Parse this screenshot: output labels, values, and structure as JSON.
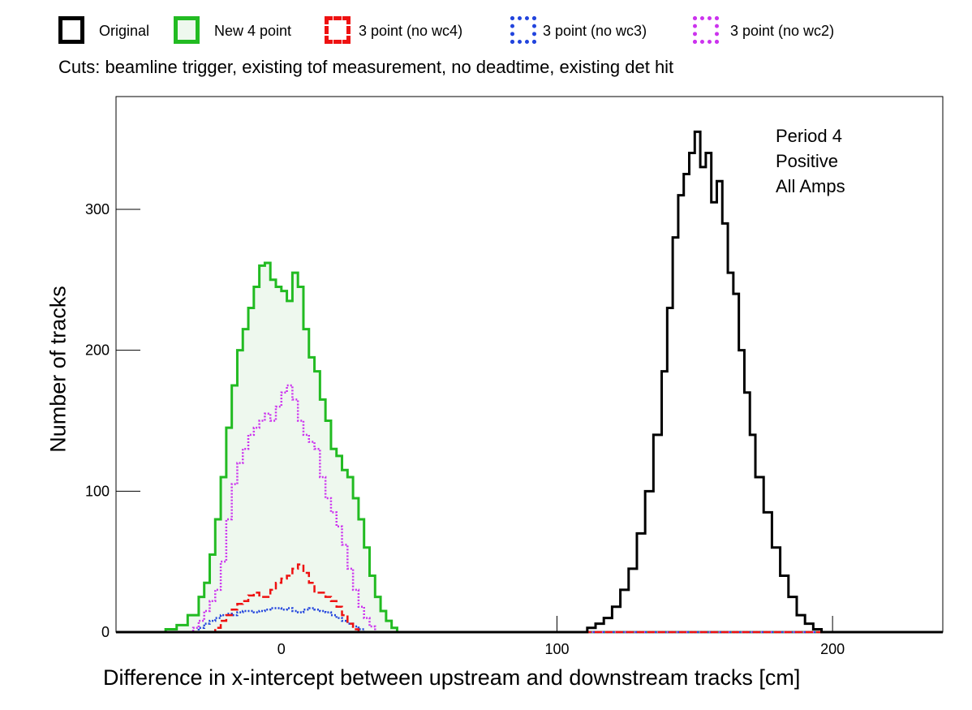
{
  "legend": [
    {
      "label": "Original",
      "color": "#000000",
      "style": "solid",
      "fill": "none"
    },
    {
      "label": "New 4 point",
      "color": "#22bb22",
      "style": "solid",
      "fill": "#eef8ee"
    },
    {
      "label": "3 point (no wc4)",
      "color": "#ee1111",
      "style": "dashed",
      "fill": "none"
    },
    {
      "label": "3 point (no wc3)",
      "color": "#2244dd",
      "style": "dotted",
      "fill": "none"
    },
    {
      "label": "3 point (no wc2)",
      "color": "#cc33ee",
      "style": "dotted",
      "fill": "none"
    }
  ],
  "cuts_text": "Cuts: beamline trigger, existing tof measurement, no deadtime, existing det hit",
  "annotations": [
    "Period 4",
    "Positive",
    "All Amps"
  ],
  "chart_data": {
    "type": "histogram",
    "xlabel": "Difference in x-intercept between upstream and downstream tracks [cm]",
    "ylabel": "Number of tracks",
    "xlim": [
      -60,
      240
    ],
    "ylim": [
      0,
      380
    ],
    "x_ticks": [
      0,
      100,
      200
    ],
    "y_ticks": [
      0,
      100,
      200,
      300
    ],
    "grid": false,
    "legend_position": "top",
    "series": [
      {
        "name": "Original",
        "color": "#000000",
        "style": "solid",
        "points": [
          [
            108,
            0
          ],
          [
            111,
            3
          ],
          [
            114,
            6
          ],
          [
            117,
            10
          ],
          [
            120,
            18
          ],
          [
            123,
            30
          ],
          [
            126,
            45
          ],
          [
            129,
            70
          ],
          [
            132,
            100
          ],
          [
            135,
            140
          ],
          [
            138,
            185
          ],
          [
            140,
            230
          ],
          [
            142,
            280
          ],
          [
            144,
            310
          ],
          [
            146,
            325
          ],
          [
            148,
            340
          ],
          [
            150,
            355
          ],
          [
            152,
            330
          ],
          [
            154,
            340
          ],
          [
            156,
            305
          ],
          [
            158,
            320
          ],
          [
            160,
            290
          ],
          [
            162,
            255
          ],
          [
            164,
            240
          ],
          [
            166,
            200
          ],
          [
            168,
            170
          ],
          [
            170,
            140
          ],
          [
            172,
            110
          ],
          [
            175,
            85
          ],
          [
            178,
            60
          ],
          [
            181,
            40
          ],
          [
            184,
            25
          ],
          [
            187,
            12
          ],
          [
            190,
            6
          ],
          [
            193,
            2
          ],
          [
            196,
            0
          ]
        ]
      },
      {
        "name": "New 4 point",
        "color": "#22bb22",
        "style": "solid",
        "fill": "#eef8ee",
        "points": [
          [
            -46,
            0
          ],
          [
            -42,
            2
          ],
          [
            -38,
            5
          ],
          [
            -34,
            12
          ],
          [
            -30,
            25
          ],
          [
            -28,
            35
          ],
          [
            -26,
            55
          ],
          [
            -24,
            80
          ],
          [
            -22,
            110
          ],
          [
            -20,
            145
          ],
          [
            -18,
            175
          ],
          [
            -16,
            200
          ],
          [
            -14,
            215
          ],
          [
            -12,
            230
          ],
          [
            -10,
            245
          ],
          [
            -8,
            260
          ],
          [
            -6,
            262
          ],
          [
            -4,
            250
          ],
          [
            -2,
            245
          ],
          [
            0,
            242
          ],
          [
            2,
            235
          ],
          [
            4,
            255
          ],
          [
            6,
            245
          ],
          [
            8,
            215
          ],
          [
            10,
            195
          ],
          [
            12,
            185
          ],
          [
            14,
            165
          ],
          [
            16,
            150
          ],
          [
            18,
            130
          ],
          [
            20,
            125
          ],
          [
            22,
            115
          ],
          [
            24,
            110
          ],
          [
            26,
            95
          ],
          [
            28,
            80
          ],
          [
            30,
            60
          ],
          [
            32,
            40
          ],
          [
            34,
            25
          ],
          [
            36,
            15
          ],
          [
            38,
            8
          ],
          [
            40,
            3
          ],
          [
            42,
            0
          ]
        ]
      },
      {
        "name": "3 point (no wc4)",
        "color": "#ee1111",
        "style": "dashed",
        "points": [
          [
            -26,
            0
          ],
          [
            -24,
            3
          ],
          [
            -22,
            8
          ],
          [
            -20,
            12
          ],
          [
            -18,
            16
          ],
          [
            -16,
            20
          ],
          [
            -14,
            22
          ],
          [
            -12,
            26
          ],
          [
            -10,
            28
          ],
          [
            -8,
            25
          ],
          [
            -6,
            25
          ],
          [
            -4,
            30
          ],
          [
            -2,
            35
          ],
          [
            0,
            38
          ],
          [
            2,
            40
          ],
          [
            4,
            45
          ],
          [
            6,
            48
          ],
          [
            8,
            42
          ],
          [
            10,
            35
          ],
          [
            12,
            28
          ],
          [
            14,
            28
          ],
          [
            16,
            25
          ],
          [
            18,
            22
          ],
          [
            20,
            18
          ],
          [
            22,
            12
          ],
          [
            24,
            6
          ],
          [
            26,
            2
          ],
          [
            28,
            0
          ]
        ]
      },
      {
        "name": "3 point (no wc3)",
        "color": "#2244dd",
        "style": "dotted",
        "points": [
          [
            -32,
            0
          ],
          [
            -30,
            3
          ],
          [
            -28,
            6
          ],
          [
            -26,
            8
          ],
          [
            -24,
            10
          ],
          [
            -22,
            12
          ],
          [
            -20,
            13
          ],
          [
            -18,
            12
          ],
          [
            -16,
            14
          ],
          [
            -14,
            15
          ],
          [
            -12,
            15
          ],
          [
            -10,
            14
          ],
          [
            -8,
            15
          ],
          [
            -6,
            16
          ],
          [
            -4,
            17
          ],
          [
            -2,
            17
          ],
          [
            0,
            16
          ],
          [
            2,
            17
          ],
          [
            4,
            15
          ],
          [
            6,
            14
          ],
          [
            8,
            16
          ],
          [
            10,
            17
          ],
          [
            12,
            16
          ],
          [
            14,
            15
          ],
          [
            16,
            14
          ],
          [
            18,
            12
          ],
          [
            20,
            10
          ],
          [
            22,
            8
          ],
          [
            24,
            6
          ],
          [
            26,
            4
          ],
          [
            28,
            2
          ],
          [
            30,
            0
          ]
        ]
      },
      {
        "name": "3 point (no wc2)",
        "color": "#cc33ee",
        "style": "dotted",
        "points": [
          [
            -34,
            0
          ],
          [
            -32,
            3
          ],
          [
            -30,
            8
          ],
          [
            -28,
            15
          ],
          [
            -26,
            22
          ],
          [
            -24,
            30
          ],
          [
            -22,
            50
          ],
          [
            -20,
            80
          ],
          [
            -18,
            105
          ],
          [
            -16,
            120
          ],
          [
            -14,
            130
          ],
          [
            -12,
            140
          ],
          [
            -10,
            145
          ],
          [
            -8,
            150
          ],
          [
            -6,
            155
          ],
          [
            -4,
            150
          ],
          [
            -2,
            160
          ],
          [
            0,
            170
          ],
          [
            2,
            175
          ],
          [
            4,
            165
          ],
          [
            6,
            150
          ],
          [
            8,
            140
          ],
          [
            10,
            135
          ],
          [
            12,
            130
          ],
          [
            14,
            110
          ],
          [
            16,
            95
          ],
          [
            18,
            85
          ],
          [
            20,
            75
          ],
          [
            22,
            62
          ],
          [
            24,
            45
          ],
          [
            26,
            30
          ],
          [
            28,
            18
          ],
          [
            30,
            10
          ],
          [
            32,
            4
          ],
          [
            34,
            0
          ]
        ]
      }
    ]
  }
}
